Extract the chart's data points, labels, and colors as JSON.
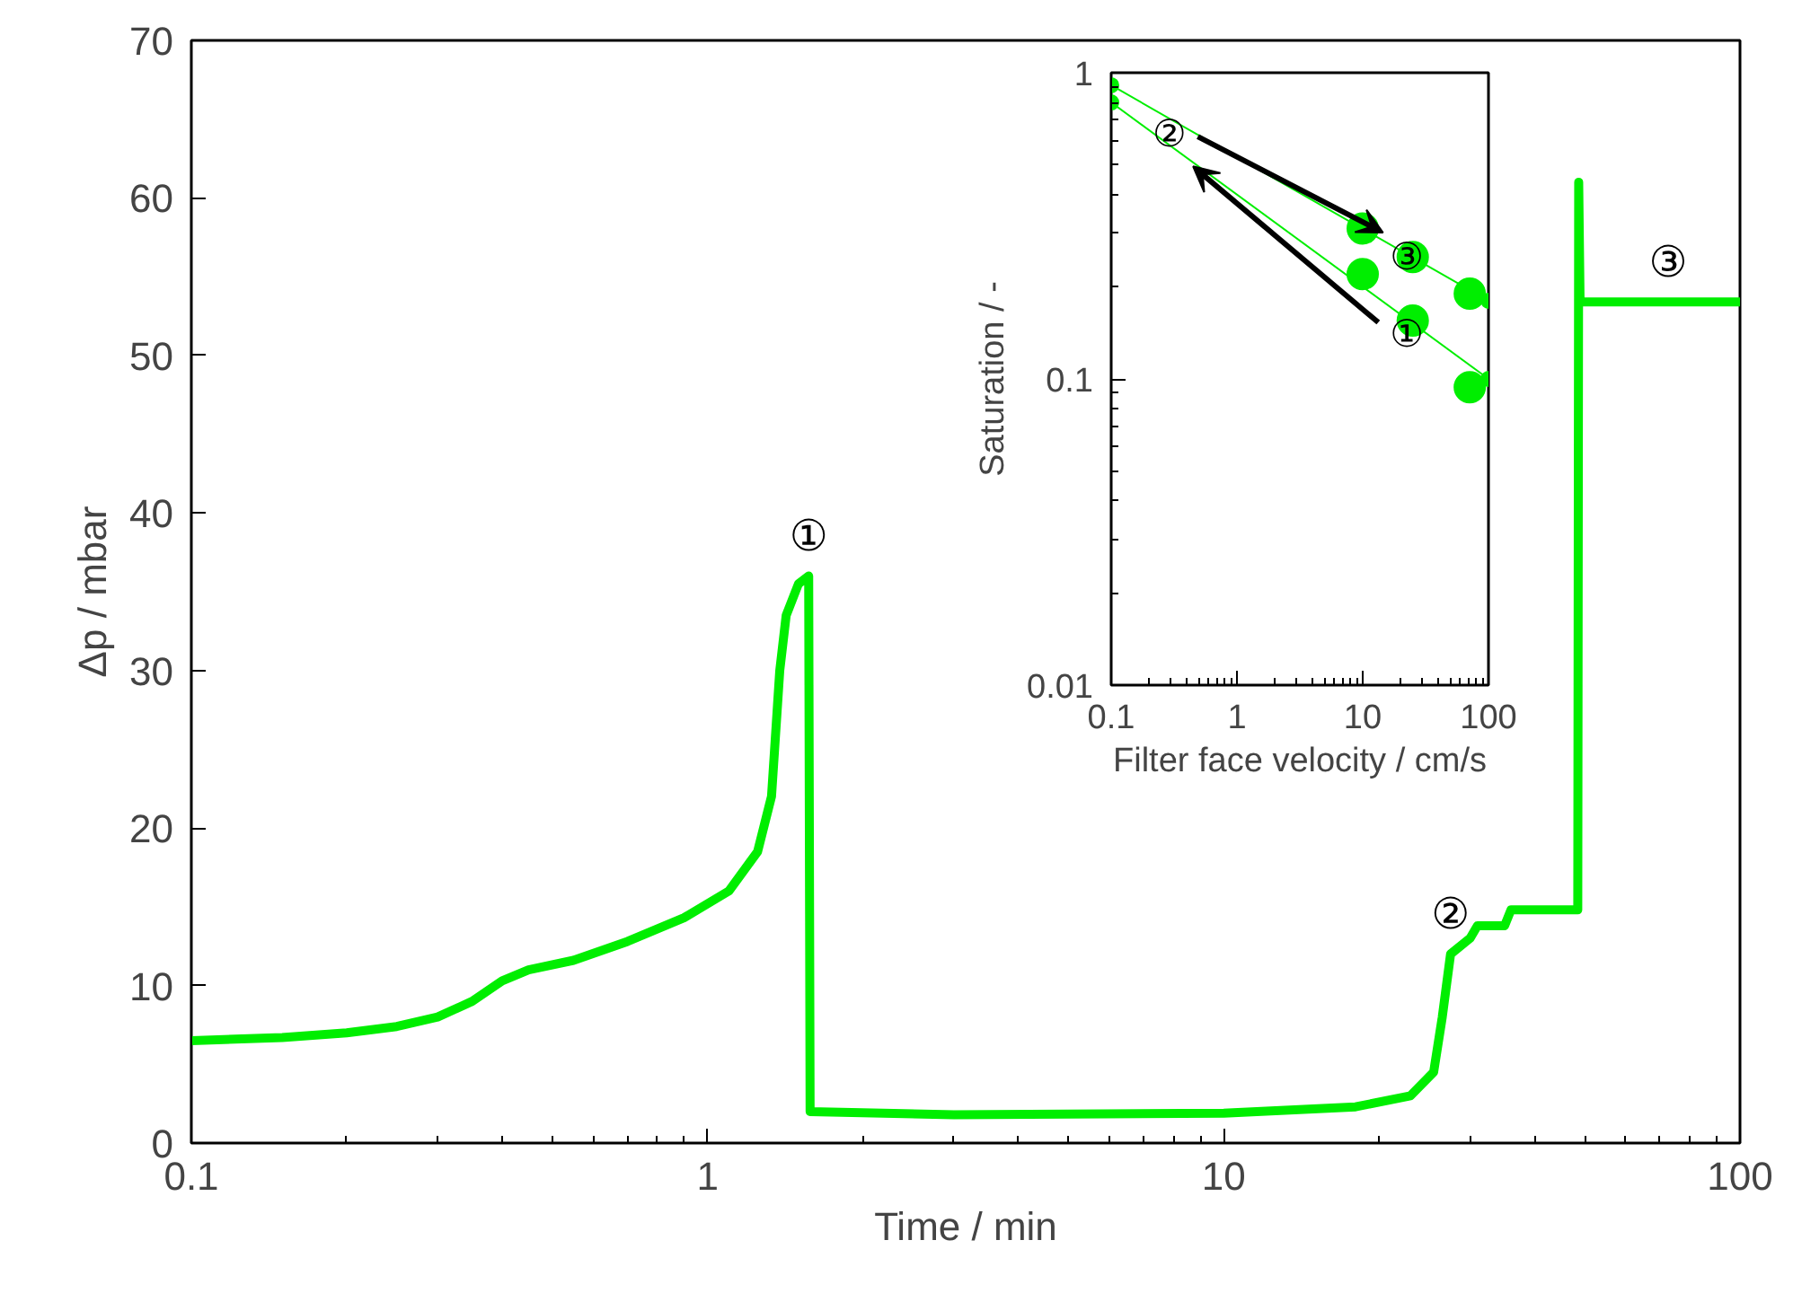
{
  "chart_data": [
    {
      "type": "line",
      "xlabel": "Time / min",
      "ylabel": "Δp / mbar",
      "log": "x",
      "grid": false,
      "marker": "none",
      "line_style": "solid",
      "xlim": [
        0.1,
        100
      ],
      "xticks": [
        0.1,
        1,
        10,
        100
      ],
      "ylim": [
        0,
        70
      ],
      "yticks": [
        0,
        10,
        20,
        30,
        40,
        50,
        60,
        70
      ],
      "x": [
        0.1,
        0.15,
        0.2,
        0.25,
        0.3,
        0.35,
        0.4,
        0.45,
        0.55,
        0.7,
        0.9,
        1.1,
        1.25,
        1.33,
        1.38,
        1.42,
        1.5,
        1.57,
        1.58,
        3,
        10,
        18,
        23,
        25.5,
        26.5,
        27.5,
        30,
        31,
        35,
        36,
        48.5,
        48.7,
        49,
        100
      ],
      "series": [
        {
          "color": "#00ee00",
          "values": [
            6.5,
            6.7,
            7.0,
            7.4,
            8.0,
            9.0,
            10.3,
            11.0,
            11.6,
            12.8,
            14.3,
            16.0,
            18.5,
            22,
            30,
            33.5,
            35.5,
            36,
            2,
            1.8,
            1.9,
            2.3,
            3,
            4.5,
            8,
            12,
            13,
            13.8,
            13.8,
            14.8,
            14.8,
            61,
            53.4,
            53.4
          ]
        }
      ],
      "annotations": [
        {
          "text": "①",
          "x": 1.57,
          "y": 36
        },
        {
          "text": "②",
          "x": 27.5,
          "y": 12
        },
        {
          "text": "③",
          "x": 72.6,
          "y": 53.4
        }
      ]
    },
    {
      "type": "scatter",
      "xlabel": "Filter face velocity / cm/s",
      "ylabel": "Saturation / -",
      "log": "xy",
      "grid": false,
      "marker": "circle",
      "xlim": [
        0.1,
        100
      ],
      "xticks": [
        0.1,
        1,
        10,
        100
      ],
      "ylim": [
        0.01,
        1
      ],
      "yticks": [
        0.01,
        0.1,
        1
      ],
      "series": [
        {
          "type": "scatter",
          "color": "#00ee00",
          "x": [
            10,
            10,
            25,
            25,
            71,
            71
          ],
          "values": [
            0.31,
            0.22,
            0.25,
            0.155,
            0.19,
            0.094
          ]
        },
        {
          "type": "line",
          "color": "#00ee00",
          "x": [
            0.1,
            100
          ],
          "values": [
            0.91,
            0.18
          ]
        },
        {
          "type": "line",
          "color": "#00ee00",
          "x": [
            0.1,
            100
          ],
          "values": [
            0.8,
            0.1
          ]
        }
      ],
      "annotations": [
        {
          "text": "①",
          "x": 22.4,
          "y": 0.14
        },
        {
          "text": "②",
          "x": 0.29,
          "y": 0.63
        },
        {
          "text": "③",
          "x": 22.4,
          "y": 0.25
        }
      ]
    }
  ]
}
